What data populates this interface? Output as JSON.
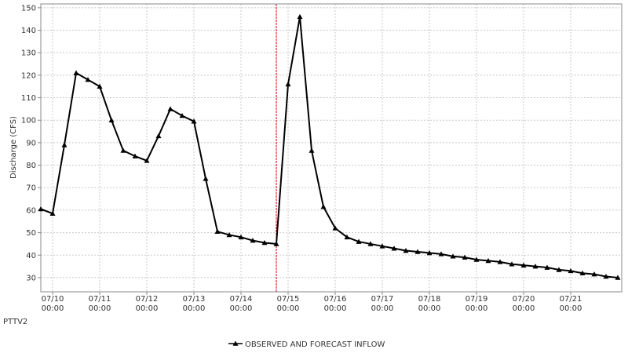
{
  "chart_data": {
    "type": "line",
    "y_label": "Discharge (CFS)",
    "location": "PTTV2",
    "x": [
      "07/09 18:00",
      "07/10 00:00",
      "07/10 06:00",
      "07/10 12:00",
      "07/10 18:00",
      "07/11 00:00",
      "07/11 06:00",
      "07/11 12:00",
      "07/11 18:00",
      "07/12 00:00",
      "07/12 06:00",
      "07/12 12:00",
      "07/12 18:00",
      "07/13 00:00",
      "07/13 06:00",
      "07/13 12:00",
      "07/13 18:00",
      "07/14 00:00",
      "07/14 06:00",
      "07/14 12:00",
      "07/14 18:00",
      "07/15 00:00",
      "07/15 06:00",
      "07/15 12:00",
      "07/15 18:00",
      "07/16 00:00",
      "07/16 06:00",
      "07/16 12:00",
      "07/16 18:00",
      "07/17 00:00",
      "07/17 06:00",
      "07/17 12:00",
      "07/17 18:00",
      "07/18 00:00",
      "07/18 06:00",
      "07/18 12:00",
      "07/18 18:00",
      "07/19 00:00",
      "07/19 06:00",
      "07/19 12:00",
      "07/19 18:00",
      "07/20 00:00",
      "07/20 06:00",
      "07/20 12:00",
      "07/20 18:00",
      "07/21 00:00",
      "07/21 06:00",
      "07/21 12:00",
      "07/21 18:00",
      "07/22 00:00"
    ],
    "series": [
      {
        "name": "OBSERVED AND FORECAST INFLOW",
        "color": "#000000",
        "values": [
          60.5,
          58.5,
          89,
          121,
          118,
          115,
          100,
          86.5,
          84,
          82,
          93,
          105,
          102,
          99.5,
          74,
          50.5,
          49,
          48,
          46.5,
          45.5,
          45,
          116,
          146,
          86.5,
          61.5,
          52,
          48,
          46,
          45,
          44,
          43,
          42,
          41.5,
          41,
          40.5,
          39.5,
          39,
          38,
          37.5,
          37,
          36,
          35.5,
          35,
          34.5,
          33.5,
          33,
          32,
          31.5,
          30.5,
          30
        ]
      }
    ],
    "xlim": [
      "07/09 18:00",
      "07/22 02:00"
    ],
    "xticks": [
      "07/10 00:00",
      "07/11 00:00",
      "07/12 00:00",
      "07/13 00:00",
      "07/14 00:00",
      "07/15 00:00",
      "07/16 00:00",
      "07/17 00:00",
      "07/18 00:00",
      "07/19 00:00",
      "07/20 00:00",
      "07/21 00:00"
    ],
    "ylim": [
      23.7,
      151.7
    ],
    "yticks": [
      30,
      40,
      50,
      60,
      70,
      80,
      90,
      100,
      110,
      120,
      130,
      140,
      150
    ],
    "grid": true,
    "reference_x": "07/14 18:00",
    "reference_color": "#cc0000"
  }
}
